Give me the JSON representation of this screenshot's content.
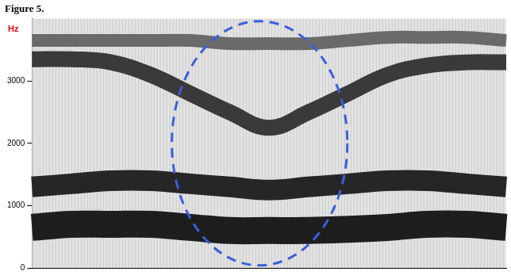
{
  "chart_data": {
    "type": "line",
    "title": "Figure 5.",
    "y_label": "Hz",
    "categories": [
      null,
      null,
      null,
      null,
      null,
      null,
      null,
      null,
      null,
      null,
      null,
      null,
      null
    ],
    "series": [
      {
        "color": "#1e1e1e",
        "values": [
          650,
          700,
          700,
          700,
          650,
          600,
          600,
          600,
          620,
          650,
          700,
          700,
          650
        ]
      },
      {
        "color": "#262626",
        "values": [
          1300,
          1350,
          1400,
          1400,
          1350,
          1300,
          1250,
          1300,
          1350,
          1400,
          1400,
          1350,
          1300
        ]
      },
      {
        "color": "#3a3a3a",
        "values": [
          3350,
          3350,
          3300,
          3100,
          2800,
          2500,
          2250,
          2500,
          2800,
          3100,
          3250,
          3300,
          3300
        ]
      },
      {
        "color": "#6a6a6a",
        "values": [
          3650,
          3650,
          3650,
          3650,
          3650,
          3600,
          3600,
          3600,
          3650,
          3700,
          3700,
          3700,
          3650
        ]
      }
    ],
    "ylim": [
      0,
      4000
    ],
    "yticks": [
      0,
      1000,
      2000,
      3000
    ],
    "grid": true,
    "tick_labels": "y"
  }
}
